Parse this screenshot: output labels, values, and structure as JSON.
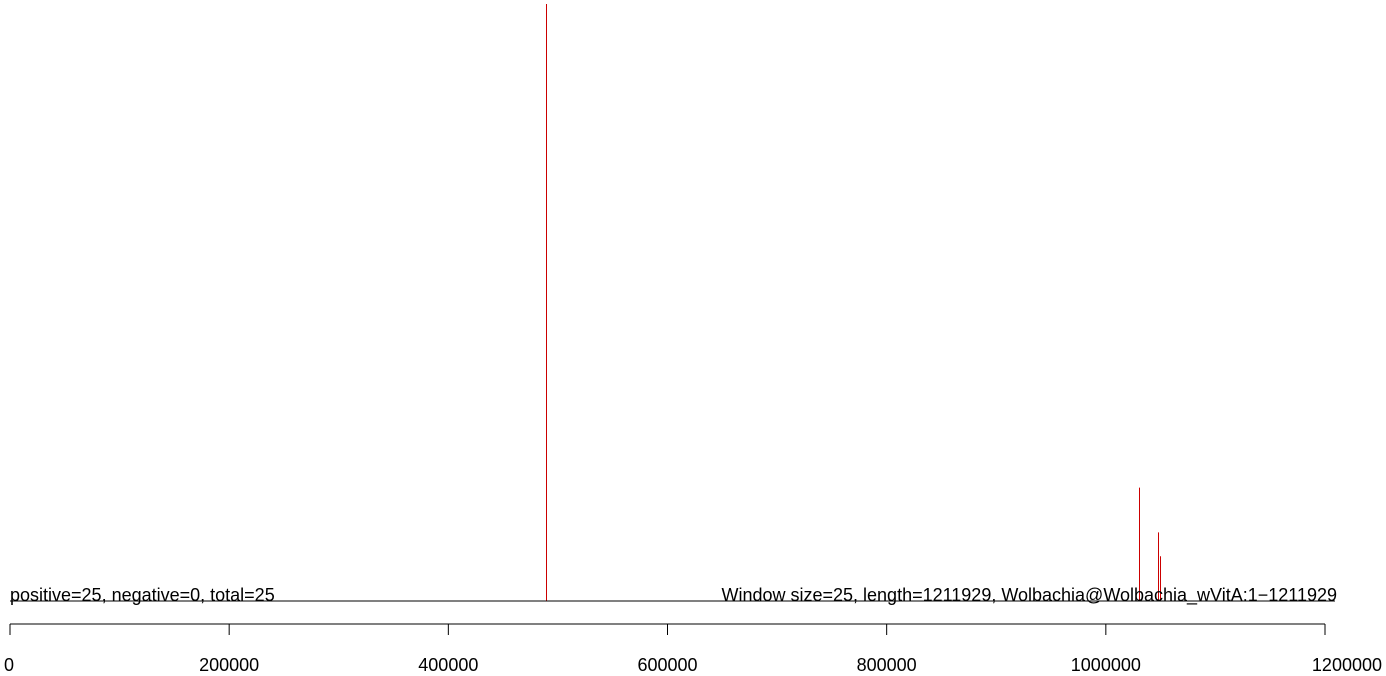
{
  "chart_data": {
    "type": "bar",
    "summary_left": "positive=25, negative=0, total=25",
    "summary_right": "Window size=25, length=1211929, Wolbachia@Wolbachia_wVitA:1−1211929",
    "xlim": [
      0,
      1200000
    ],
    "ylim": [
      0,
      1
    ],
    "x_ticks": [
      0,
      200000,
      400000,
      600000,
      800000,
      1000000,
      1200000
    ],
    "x_tick_labels": [
      "0",
      "200000",
      "400000",
      "600000",
      "800000",
      "1000000",
      "1200000"
    ],
    "series": [
      {
        "x": [
          489000,
          1030000,
          1048000,
          1049500
        ],
        "values": [
          1.0,
          0.19,
          0.115,
          0.075
        ]
      }
    ],
    "colors": {
      "bar": "#cc0000",
      "axis": "#000000",
      "baseline": "#000000"
    },
    "grid": false
  }
}
